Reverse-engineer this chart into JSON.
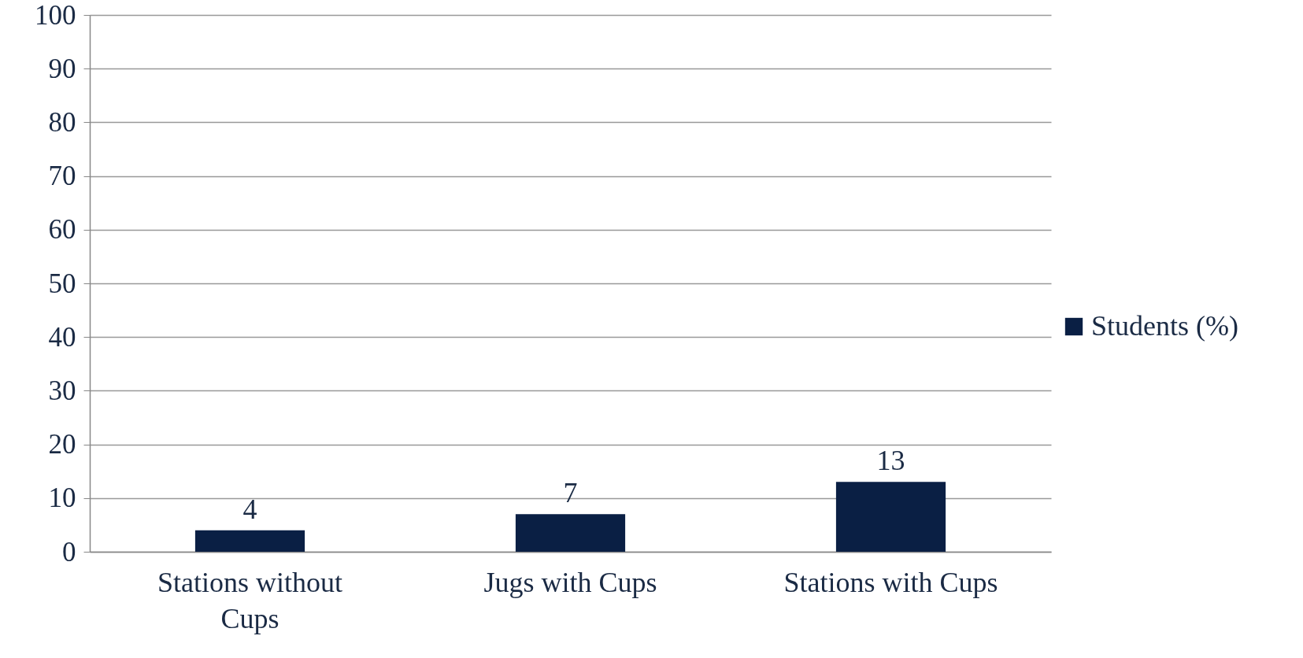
{
  "chart_data": {
    "type": "bar",
    "categories": [
      "Stations without Cups",
      "Jugs with Cups",
      "Stations with Cups"
    ],
    "series": [
      {
        "name": "Students (%)",
        "color": "#0a1f44",
        "values": [
          4,
          7,
          13
        ]
      }
    ],
    "ylim": [
      0,
      100
    ],
    "yticks": [
      0,
      10,
      20,
      30,
      40,
      50,
      60,
      70,
      80,
      90,
      100
    ],
    "grid": "y",
    "legend": "right",
    "data_labels": true
  }
}
